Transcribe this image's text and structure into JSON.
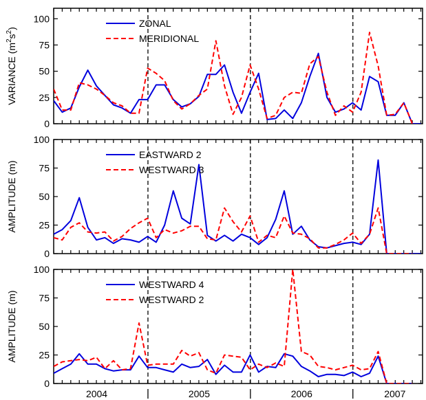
{
  "chart_data": [
    {
      "type": "line",
      "ylabel": "VARIANCE (m²s²)",
      "ylabel_base": "VARIANCE (m",
      "ylabel_sup1": "2",
      "ylabel_mid": "s",
      "ylabel_sup2": "2",
      "ylabel_end": ")",
      "ylim": [
        0,
        110
      ],
      "yticks": [
        0,
        25,
        50,
        75,
        100
      ],
      "xlim": [
        2004.0,
        2007.6
      ],
      "legend_position": "top-left",
      "series": [
        {
          "name": "ZONAL",
          "color": "#0000dd",
          "dash": "solid",
          "x": [
            2004.0,
            2004.083,
            2004.167,
            2004.25,
            2004.333,
            2004.417,
            2004.5,
            2004.583,
            2004.667,
            2004.75,
            2004.833,
            2004.917,
            2005.0,
            2005.083,
            2005.167,
            2005.25,
            2005.333,
            2005.417,
            2005.5,
            2005.583,
            2005.667,
            2005.75,
            2005.833,
            2005.917,
            2006.0,
            2006.083,
            2006.167,
            2006.25,
            2006.333,
            2006.417,
            2006.5,
            2006.583,
            2006.667,
            2006.75,
            2006.833,
            2006.917,
            2007.0,
            2007.083,
            2007.167,
            2007.25,
            2007.333,
            2007.417,
            2007.5,
            2007.583
          ],
          "values": [
            22,
            11,
            15,
            35,
            51,
            36,
            27,
            18,
            15,
            10,
            23,
            23,
            37,
            37,
            23,
            16,
            19,
            26,
            47,
            47,
            56,
            30,
            10,
            30,
            48,
            4,
            5,
            13,
            5,
            20,
            45,
            67,
            25,
            11,
            14,
            20,
            13,
            45,
            40,
            8,
            8,
            20,
            0,
            0
          ]
        },
        {
          "name": "MERIDIONAL",
          "color": "#ff0000",
          "dash": "dashed",
          "x": [
            2004.0,
            2004.083,
            2004.167,
            2004.25,
            2004.333,
            2004.417,
            2004.5,
            2004.583,
            2004.667,
            2004.75,
            2004.833,
            2004.917,
            2005.0,
            2005.083,
            2005.167,
            2005.25,
            2005.333,
            2005.417,
            2005.5,
            2005.583,
            2005.667,
            2005.75,
            2005.833,
            2005.917,
            2006.0,
            2006.083,
            2006.167,
            2006.25,
            2006.333,
            2006.417,
            2006.5,
            2006.583,
            2006.667,
            2006.75,
            2006.833,
            2006.917,
            2007.0,
            2007.083,
            2007.167,
            2007.25,
            2007.333,
            2007.417,
            2007.5
          ],
          "values": [
            33,
            13,
            13,
            39,
            37,
            33,
            27,
            20,
            17,
            10,
            10,
            53,
            48,
            41,
            22,
            14,
            19,
            27,
            33,
            79,
            36,
            9,
            25,
            56,
            33,
            5,
            8,
            25,
            30,
            29,
            57,
            64,
            30,
            8,
            17,
            11,
            30,
            87,
            55,
            8,
            9,
            20,
            0
          ]
        }
      ]
    },
    {
      "type": "line",
      "ylabel": "AMPLITUDE (m)",
      "ylim": [
        0,
        100
      ],
      "yticks": [
        0,
        25,
        50,
        75,
        100
      ],
      "xlim": [
        2004.0,
        2007.6
      ],
      "legend_position": "top-left",
      "series": [
        {
          "name": "EASTWARD 2",
          "color": "#0000dd",
          "dash": "solid",
          "x": [
            2004.0,
            2004.083,
            2004.167,
            2004.25,
            2004.333,
            2004.417,
            2004.5,
            2004.583,
            2004.667,
            2004.75,
            2004.833,
            2004.917,
            2005.0,
            2005.083,
            2005.167,
            2005.25,
            2005.333,
            2005.417,
            2005.5,
            2005.583,
            2005.667,
            2005.75,
            2005.833,
            2005.917,
            2006.0,
            2006.083,
            2006.167,
            2006.25,
            2006.333,
            2006.417,
            2006.5,
            2006.583,
            2006.667,
            2006.75,
            2006.833,
            2006.917,
            2007.0,
            2007.083,
            2007.167,
            2007.25,
            2007.333,
            2007.417,
            2007.5,
            2007.583
          ],
          "values": [
            17,
            21,
            29,
            49,
            23,
            12,
            14,
            9,
            13,
            12,
            10,
            15,
            10,
            25,
            55,
            31,
            26,
            78,
            16,
            11,
            16,
            11,
            17,
            14,
            8,
            14,
            30,
            55,
            17,
            24,
            12,
            6,
            5,
            7,
            9,
            10,
            8,
            17,
            82,
            0,
            0,
            0,
            0,
            0
          ]
        },
        {
          "name": "WESTWARD 3",
          "color": "#ff0000",
          "dash": "dashed",
          "x": [
            2004.0,
            2004.083,
            2004.167,
            2004.25,
            2004.333,
            2004.417,
            2004.5,
            2004.583,
            2004.667,
            2004.75,
            2004.833,
            2004.917,
            2005.0,
            2005.083,
            2005.167,
            2005.25,
            2005.333,
            2005.417,
            2005.5,
            2005.583,
            2005.667,
            2005.75,
            2005.833,
            2005.917,
            2006.0,
            2006.083,
            2006.167,
            2006.25,
            2006.333,
            2006.417,
            2006.5,
            2006.583,
            2006.667,
            2006.75,
            2006.833,
            2006.917,
            2007.0,
            2007.083,
            2007.167,
            2007.25,
            2007.333,
            2007.417,
            2007.5
          ],
          "values": [
            14,
            12,
            23,
            27,
            19,
            18,
            19,
            11,
            15,
            22,
            27,
            31,
            14,
            21,
            18,
            20,
            24,
            24,
            13,
            12,
            40,
            28,
            19,
            33,
            10,
            16,
            14,
            33,
            18,
            17,
            13,
            5,
            5,
            8,
            12,
            18,
            9,
            17,
            40,
            0,
            0,
            0,
            0
          ]
        }
      ]
    },
    {
      "type": "line",
      "ylabel": "AMPLITUDE (m)",
      "ylim": [
        0,
        100
      ],
      "yticks": [
        0,
        25,
        50,
        75,
        100
      ],
      "xlim": [
        2004.0,
        2007.6
      ],
      "xticklabels": [
        "2004",
        "2005",
        "2006",
        "2007"
      ],
      "legend_position": "top-left",
      "series": [
        {
          "name": "WESTWARD 4",
          "color": "#0000dd",
          "dash": "solid",
          "x": [
            2004.0,
            2004.083,
            2004.167,
            2004.25,
            2004.333,
            2004.417,
            2004.5,
            2004.583,
            2004.667,
            2004.75,
            2004.833,
            2004.917,
            2005.0,
            2005.083,
            2005.167,
            2005.25,
            2005.333,
            2005.417,
            2005.5,
            2005.583,
            2005.667,
            2005.75,
            2005.833,
            2005.917,
            2006.0,
            2006.083,
            2006.167,
            2006.25,
            2006.333,
            2006.417,
            2006.5,
            2006.583,
            2006.667,
            2006.75,
            2006.833,
            2006.917,
            2007.0,
            2007.083,
            2007.167,
            2007.25,
            2007.333,
            2007.417,
            2007.5
          ],
          "values": [
            9,
            13,
            17,
            26,
            17,
            17,
            13,
            11,
            12,
            12,
            24,
            14,
            14,
            12,
            10,
            17,
            14,
            15,
            21,
            8,
            16,
            10,
            10,
            25,
            10,
            15,
            14,
            26,
            24,
            15,
            11,
            6,
            8,
            8,
            7,
            10,
            6,
            9,
            24,
            0,
            0,
            0,
            0
          ]
        },
        {
          "name": "WESTWARD 2",
          "color": "#ff0000",
          "dash": "dashed",
          "x": [
            2004.0,
            2004.083,
            2004.167,
            2004.25,
            2004.333,
            2004.417,
            2004.5,
            2004.583,
            2004.667,
            2004.75,
            2004.833,
            2004.917,
            2005.0,
            2005.083,
            2005.167,
            2005.25,
            2005.333,
            2005.417,
            2005.5,
            2005.583,
            2005.667,
            2005.75,
            2005.833,
            2005.917,
            2006.0,
            2006.083,
            2006.167,
            2006.25,
            2006.333,
            2006.417,
            2006.5,
            2006.583,
            2006.667,
            2006.75,
            2006.833,
            2006.917,
            2007.0,
            2007.083,
            2007.167,
            2007.25,
            2007.333,
            2007.417,
            2007.5
          ],
          "values": [
            15,
            19,
            20,
            21,
            20,
            23,
            13,
            20,
            12,
            13,
            53,
            16,
            17,
            17,
            17,
            29,
            24,
            27,
            12,
            9,
            25,
            24,
            23,
            12,
            17,
            14,
            18,
            15,
            102,
            28,
            25,
            15,
            14,
            12,
            14,
            16,
            12,
            13,
            28,
            0,
            0,
            0,
            0
          ]
        }
      ]
    }
  ],
  "year_labels": [
    "2004",
    "2005",
    "2006",
    "2007"
  ],
  "year_separators": [
    2004.92,
    2005.92,
    2006.92
  ]
}
